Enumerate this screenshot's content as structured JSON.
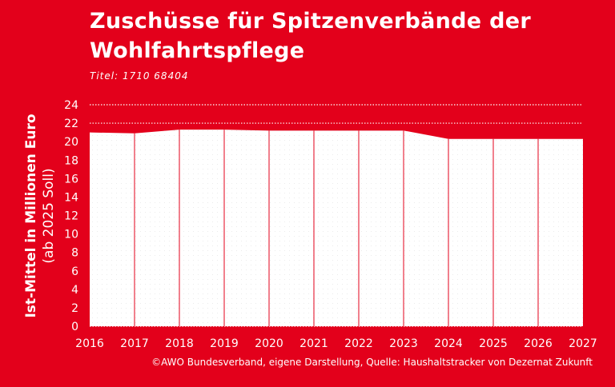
{
  "header": {
    "title": "Zuschüsse für Spitzenverbände der Wohlfahrtspflege",
    "subtitle": "Titel: 1710 68404"
  },
  "footer": {
    "source": "©AWO Bundesverband, eigene Darstellung, Quelle: Haushaltstracker von Dezernat Zukunft"
  },
  "colors": {
    "background": "#e3001b",
    "area": "#ffffff",
    "text": "#ffffff"
  },
  "chart_data": {
    "type": "area",
    "title": "Zuschüsse für Spitzenverbände der Wohlfahrtspflege",
    "ylabel_line1": "Ist-Mittel in Millionen Euro",
    "ylabel_line2": "(ab 2025 Soll)",
    "x": [
      2016,
      2017,
      2018,
      2019,
      2020,
      2021,
      2022,
      2023,
      2024,
      2025,
      2026,
      2027
    ],
    "y": [
      21.0,
      20.9,
      21.3,
      21.3,
      21.2,
      21.2,
      21.2,
      21.2,
      20.3,
      20.3,
      20.3,
      20.3
    ],
    "xticks": [
      "2016",
      "2017",
      "2018",
      "2019",
      "2020",
      "2021",
      "2022",
      "2023",
      "2024",
      "2025",
      "2026",
      "2027"
    ],
    "yticks": [
      "0",
      "2",
      "4",
      "6",
      "8",
      "10",
      "12",
      "14",
      "16",
      "18",
      "20",
      "22",
      "24"
    ],
    "xlim": [
      2016,
      2027
    ],
    "ylim": [
      0,
      24
    ],
    "grid": "dotted lines above area",
    "legend": "none"
  }
}
